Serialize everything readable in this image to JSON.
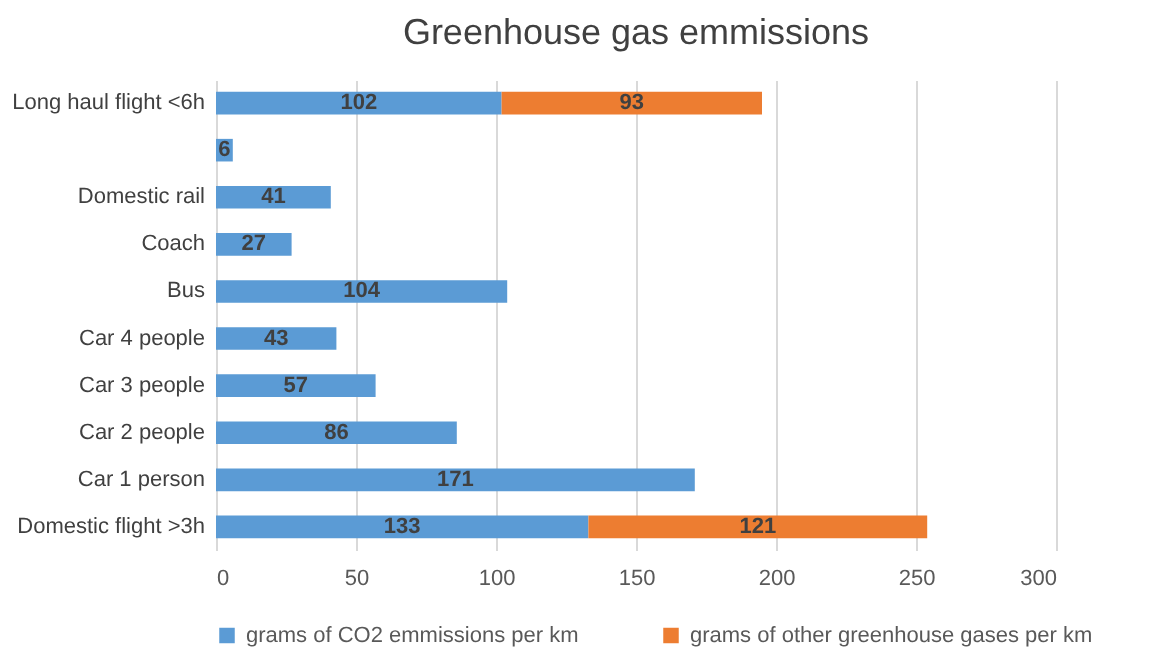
{
  "chart_data": {
    "type": "bar",
    "orientation": "horizontal",
    "stacked": true,
    "title": "Greenhouse gas emmissions",
    "categories": [
      "Long haul flight <6h",
      null,
      "Domestic rail",
      "Coach",
      "Bus",
      "Car 4 people",
      "Car 3 people",
      "Car 2 people",
      "Car 1 person",
      "Domestic flight >3h"
    ],
    "series": [
      {
        "name": "grams of CO2 emmissions per km",
        "color": "#5b9bd5",
        "values": [
          102,
          6,
          41,
          27,
          104,
          43,
          57,
          86,
          171,
          133
        ]
      },
      {
        "name": "grams of other greenhouse gases per km",
        "color": "#ed7d31",
        "values": [
          93,
          null,
          null,
          null,
          null,
          null,
          null,
          null,
          null,
          121
        ]
      }
    ],
    "xlim": [
      0,
      300
    ],
    "xticks": [
      0,
      50,
      100,
      150,
      200,
      250,
      300
    ],
    "grid": "x",
    "legend": "bottom",
    "data_labels": true
  }
}
